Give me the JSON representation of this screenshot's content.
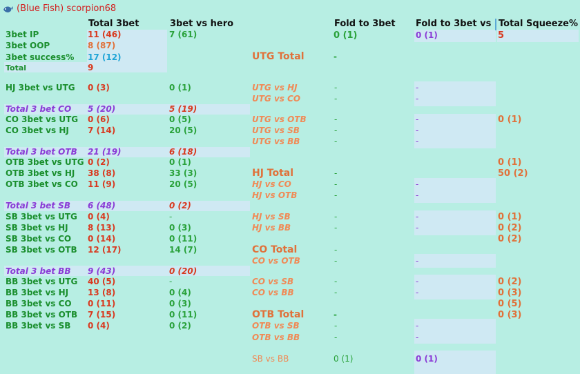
{
  "title": "(Blue Fish) scorpion68",
  "headers": {
    "total3bet": "Total 3bet",
    "vs_hero": "3bet vs hero",
    "fold3bet": "Fold to 3bet",
    "fold_vs_h": "Fold to 3bet vs H",
    "squeeze": "Total Squeeze%"
  },
  "left": [
    {
      "label": "3bet IP",
      "total": "11 (46)",
      "hero": "7 (61)"
    },
    {
      "label": "3bet OOP",
      "total": "8 (87)",
      "hero": ""
    },
    {
      "label": "3bet success%",
      "total": "17 (12)",
      "hero": ""
    },
    {
      "label": "Total",
      "total": "9",
      "hero": ""
    },
    {
      "label": "HJ 3bet vs UTG",
      "total": "0 (3)",
      "hero": "0 (1)"
    },
    {
      "label": "Total 3 bet CO",
      "total": "5 (20)",
      "hero": "5 (19)"
    },
    {
      "label": "CO 3bet vs UTG",
      "total": "0 (6)",
      "hero": "0 (5)"
    },
    {
      "label": "CO 3bet vs HJ",
      "total": "7 (14)",
      "hero": "20 (5)"
    },
    {
      "label": "Total 3 bet OTB",
      "total": "21 (19)",
      "hero": "6 (18)"
    },
    {
      "label": "OTB 3bet vs UTG",
      "total": "0 (2)",
      "hero": "0 (1)"
    },
    {
      "label": "OTB 3bet vs HJ",
      "total": "38 (8)",
      "hero": "33 (3)"
    },
    {
      "label": "OTB 3bet vs CO",
      "total": "11 (9)",
      "hero": "20 (5)"
    },
    {
      "label": "Total 3 bet SB",
      "total": "6 (48)",
      "hero": "0 (2)"
    },
    {
      "label": "SB 3bet vs UTG",
      "total": "0 (4)",
      "hero": "-"
    },
    {
      "label": "SB 3bet vs HJ",
      "total": "8 (13)",
      "hero": "0 (3)"
    },
    {
      "label": "SB 3bet vs CO",
      "total": "0 (14)",
      "hero": "0 (11)"
    },
    {
      "label": "SB 3bet vs OTB",
      "total": "12 (17)",
      "hero": "14 (7)"
    },
    {
      "label": "Total 3 bet BB",
      "total": "9 (43)",
      "hero": "0 (20)"
    },
    {
      "label": "BB 3bet vs UTG",
      "total": "40 (5)",
      "hero": "-"
    },
    {
      "label": "BB 3bet vs HJ",
      "total": "13 (8)",
      "hero": "0 (4)"
    },
    {
      "label": "BB 3bet vs CO",
      "total": "0 (11)",
      "hero": "0 (3)"
    },
    {
      "label": "BB 3bet vs OTB",
      "total": "7 (15)",
      "hero": "0 (11)"
    },
    {
      "label": "BB 3bet vs SB",
      "total": "0 (4)",
      "hero": "0 (2)"
    }
  ],
  "right": [
    {
      "label": "",
      "fold": "0 (1)",
      "foldh": "0 (1)",
      "sq": "5"
    },
    {
      "label": "UTG Total",
      "fold": "-",
      "foldh": "",
      "sq": ""
    },
    {
      "label": "UTG vs HJ",
      "fold": "-",
      "foldh": "-",
      "sq": ""
    },
    {
      "label": "UTG vs CO",
      "fold": "-",
      "foldh": "-",
      "sq": ""
    },
    {
      "label": "UTG vs OTB",
      "fold": "-",
      "foldh": "-",
      "sq": "0 (1)"
    },
    {
      "label": "UTG vs SB",
      "fold": "-",
      "foldh": "-",
      "sq": ""
    },
    {
      "label": "UTG vs BB",
      "fold": "-",
      "foldh": "-",
      "sq": ""
    },
    {
      "label": "",
      "fold": "",
      "foldh": "",
      "sq": "0 (1)"
    },
    {
      "label": "HJ Total",
      "fold": "-",
      "foldh": "",
      "sq": "50 (2)"
    },
    {
      "label": "HJ vs CO",
      "fold": "-",
      "foldh": "-",
      "sq": ""
    },
    {
      "label": "HJ vs OTB",
      "fold": "-",
      "foldh": "-",
      "sq": ""
    },
    {
      "label": "HJ vs SB",
      "fold": "-",
      "foldh": "-",
      "sq": "0 (1)"
    },
    {
      "label": "HJ vs BB",
      "fold": "-",
      "foldh": "-",
      "sq": "0 (2)"
    },
    {
      "label": "",
      "fold": "",
      "foldh": "",
      "sq": "0 (2)"
    },
    {
      "label": "CO Total",
      "fold": "-",
      "foldh": "",
      "sq": ""
    },
    {
      "label": "CO vs OTB",
      "fold": "-",
      "foldh": "-",
      "sq": ""
    },
    {
      "label": "CO vs SB",
      "fold": "-",
      "foldh": "-",
      "sq": "0 (2)"
    },
    {
      "label": "CO vs BB",
      "fold": "-",
      "foldh": "-",
      "sq": "0 (3)"
    },
    {
      "label": "",
      "fold": "",
      "foldh": "",
      "sq": "0 (5)"
    },
    {
      "label": "OTB Total",
      "fold": "-",
      "foldh": "",
      "sq": "0 (3)"
    },
    {
      "label": "OTB vs SB",
      "fold": "-",
      "foldh": "-",
      "sq": ""
    },
    {
      "label": "OTB vs BB",
      "fold": "-",
      "foldh": "-",
      "sq": ""
    },
    {
      "label": "SB vs BB",
      "fold": "0 (1)",
      "foldh": "0 (1)",
      "sq": ""
    }
  ]
}
